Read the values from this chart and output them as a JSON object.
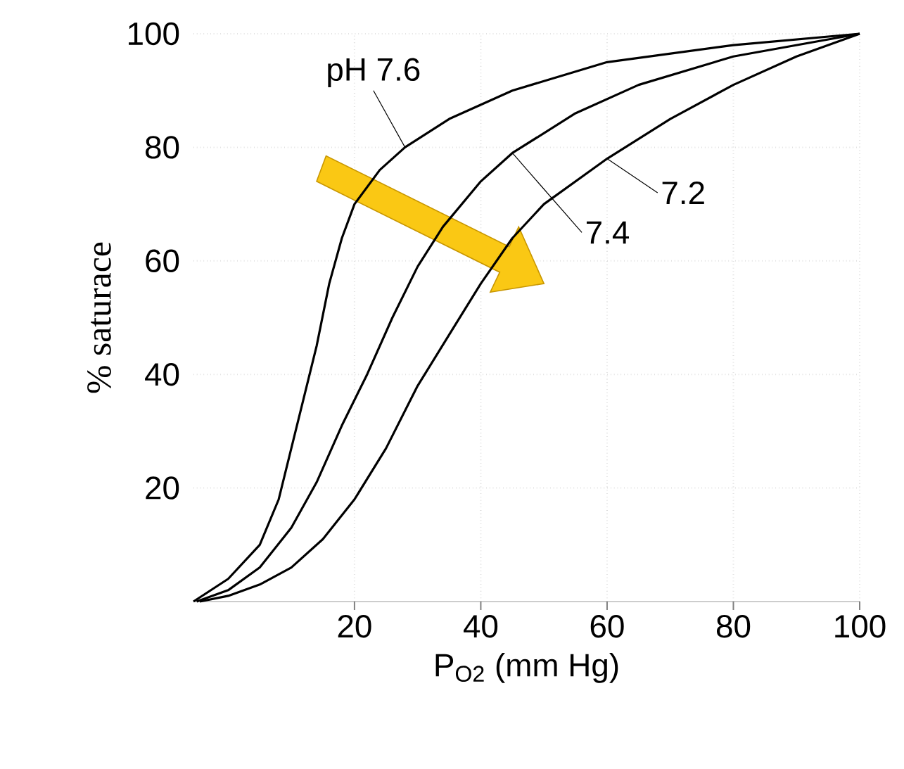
{
  "chart_data": {
    "type": "line",
    "xlabel": "P$_{O2}$ (mm Hg)",
    "ylabel": "% saturace",
    "xlim": [
      -5.5,
      100
    ],
    "ylim": [
      0,
      100
    ],
    "xticks": [
      20,
      40,
      60,
      80,
      100
    ],
    "yticks": [
      20,
      40,
      60,
      80,
      100
    ],
    "grid": true,
    "line_style": "solid",
    "series": [
      {
        "name": "pH 7.6",
        "color": "#000000",
        "x": [
          -5.5,
          0,
          5,
          8,
          10,
          12,
          14,
          16,
          18,
          20,
          24,
          28,
          35,
          45,
          60,
          80,
          100
        ],
        "values": [
          0,
          4,
          10,
          18,
          27,
          36,
          45,
          56,
          64,
          70,
          76,
          80,
          85,
          90,
          95,
          98,
          100
        ]
      },
      {
        "name": "7.4",
        "color": "#000000",
        "x": [
          -5,
          0,
          5,
          10,
          14,
          18,
          22,
          26,
          30,
          34,
          40,
          45,
          55,
          65,
          80,
          100
        ],
        "values": [
          0,
          2,
          6,
          13,
          21,
          31,
          40,
          50,
          59,
          66,
          74,
          79,
          86,
          91,
          96,
          100
        ]
      },
      {
        "name": "7.2",
        "color": "#000000",
        "x": [
          -4.5,
          0,
          5,
          10,
          15,
          20,
          25,
          30,
          35,
          40,
          45,
          50,
          60,
          70,
          80,
          90,
          100
        ],
        "values": [
          0,
          1,
          3,
          6,
          11,
          18,
          27,
          38,
          47,
          56,
          64,
          70,
          78,
          85,
          91,
          96,
          100
        ]
      }
    ]
  }
}
